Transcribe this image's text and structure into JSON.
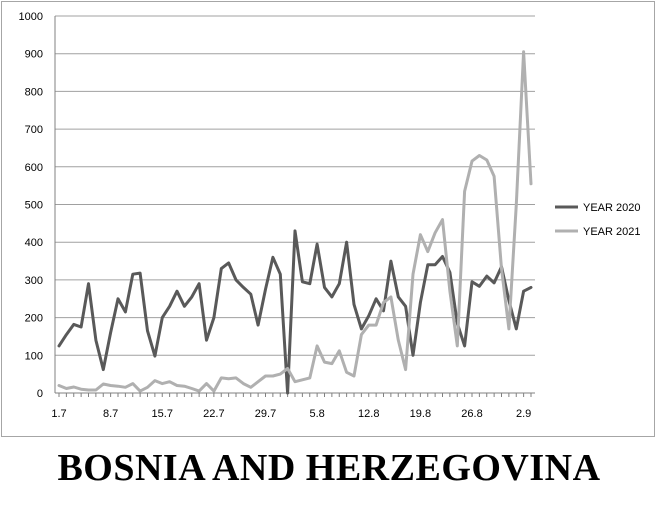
{
  "caption": "BOSNIA AND HERZEGOVINA",
  "chart_data": {
    "type": "line",
    "title": "",
    "xlabel": "",
    "ylabel": "",
    "ylim": [
      0,
      1000
    ],
    "yticks": [
      0,
      100,
      200,
      300,
      400,
      500,
      600,
      700,
      800,
      900,
      1000
    ],
    "x_tick_labels": [
      {
        "index": 0,
        "label": "1.7"
      },
      {
        "index": 7,
        "label": "8.7"
      },
      {
        "index": 14,
        "label": "15.7"
      },
      {
        "index": 21,
        "label": "22.7"
      },
      {
        "index": 28,
        "label": "29.7"
      },
      {
        "index": 35,
        "label": "5.8"
      },
      {
        "index": 42,
        "label": "12.8"
      },
      {
        "index": 49,
        "label": "19.8"
      },
      {
        "index": 56,
        "label": "26.8"
      },
      {
        "index": 63,
        "label": "2.9"
      }
    ],
    "grid": "horizontal",
    "legend_position": "right",
    "series": [
      {
        "name": "YEAR 2020",
        "color": "#595959",
        "values": [
          125,
          155,
          182,
          175,
          290,
          140,
          62,
          160,
          250,
          215,
          315,
          318,
          165,
          98,
          200,
          230,
          270,
          230,
          255,
          290,
          140,
          200,
          330,
          345,
          300,
          280,
          262,
          180,
          275,
          360,
          315,
          0,
          430,
          295,
          290,
          395,
          280,
          255,
          290,
          400,
          235,
          170,
          205,
          250,
          218,
          350,
          255,
          230,
          100,
          240,
          340,
          340,
          362,
          320,
          185,
          125,
          295,
          283,
          310,
          292,
          335,
          245,
          170,
          270,
          280
        ],
        "line_width": 3
      },
      {
        "name": "YEAR 2021",
        "color": "#b0b0b0",
        "values": [
          20,
          12,
          16,
          10,
          8,
          8,
          24,
          20,
          18,
          15,
          25,
          5,
          15,
          33,
          25,
          30,
          20,
          18,
          12,
          5,
          25,
          5,
          40,
          38,
          40,
          25,
          15,
          30,
          45,
          45,
          50,
          65,
          30,
          35,
          40,
          125,
          82,
          78,
          112,
          55,
          45,
          155,
          180,
          180,
          240,
          255,
          140,
          62,
          315,
          420,
          375,
          425,
          460,
          270,
          125,
          535,
          615,
          630,
          618,
          575,
          330,
          170,
          500,
          905,
          555
        ],
        "line_width": 3
      }
    ]
  }
}
